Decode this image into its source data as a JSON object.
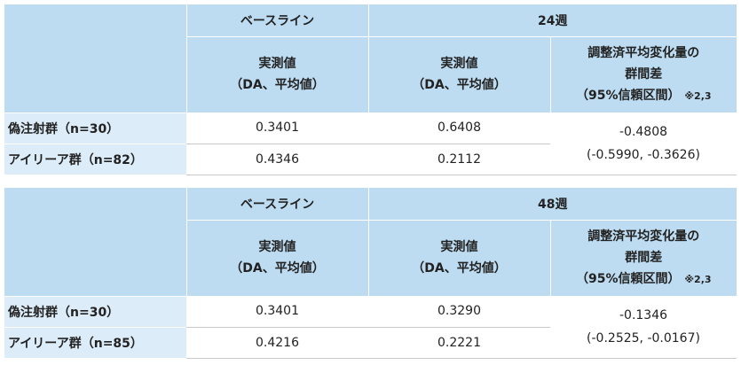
{
  "tables": [
    {
      "header": {
        "baseline": "ベースライン",
        "period": "24週"
      },
      "subheader": {
        "measured_line1": "実測値",
        "measured_line2": "（DA、平均値）",
        "diff_line1": "調整済平均変化量の",
        "diff_line2": "群間差",
        "diff_line3": "（95%信頼区間）",
        "diff_note": "※2,3"
      },
      "rows": [
        {
          "group": "偽注射群（n=30）",
          "baseline": "0.3401",
          "week": "0.6408"
        },
        {
          "group": "アイリーア群（n=82）",
          "baseline": "0.4346",
          "week": "0.2112"
        }
      ],
      "difference": {
        "value": "-0.4808",
        "ci": "(-0.5990, -0.3626)"
      }
    },
    {
      "header": {
        "baseline": "ベースライン",
        "period": "48週"
      },
      "subheader": {
        "measured_line1": "実測値",
        "measured_line2": "（DA、平均値）",
        "diff_line1": "調整済平均変化量の",
        "diff_line2": "群間差",
        "diff_line3": "（95%信頼区間）",
        "diff_note": "※2,3"
      },
      "rows": [
        {
          "group": "偽注射群（n=30）",
          "baseline": "0.3401",
          "week": "0.3290"
        },
        {
          "group": "アイリーア群（n=85）",
          "baseline": "0.4216",
          "week": "0.2221"
        }
      ],
      "difference": {
        "value": "-0.1346",
        "ci": "(-0.2525, -0.0167)"
      }
    }
  ]
}
